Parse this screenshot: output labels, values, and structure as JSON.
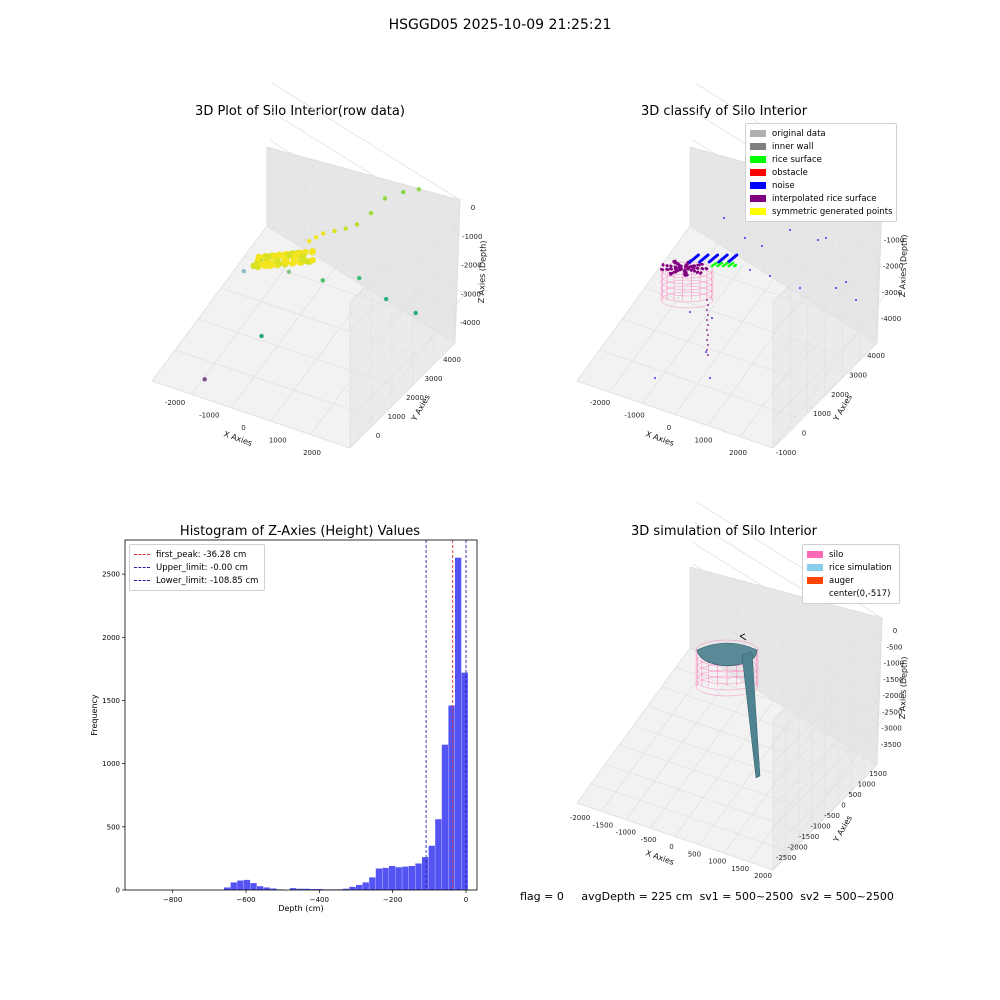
{
  "suptitle": "HSGGD05 2025-10-09 21:25:21",
  "footer": {
    "flag": "flag = 0",
    "avg_depth": "avgDepth = 225 cm",
    "sv1": "sv1 = 500~2500",
    "sv2": "sv2 = 500~2500"
  },
  "chart_data": [
    {
      "type": "scatter",
      "title": "3D Plot of Silo Interior(row data)",
      "xlabel": "X Axies",
      "ylabel": "Y Axies",
      "zlabel": "Z Axies (Depth)",
      "x_ticks": [
        "-2000",
        "-1000",
        "0",
        "1000",
        "2000"
      ],
      "y_ticks": [
        "0",
        "1000",
        "2000",
        "3000",
        "4000"
      ],
      "z_ticks": [
        "0",
        "-1000",
        "-2000",
        "-3000",
        "-4000"
      ],
      "points": [
        {
          "x": -200,
          "y": 2500,
          "z": -2000,
          "color": "#f5e61a"
        },
        {
          "x": -100,
          "y": 2600,
          "z": -1950,
          "color": "#f2e620"
        },
        {
          "x": 0,
          "y": 2700,
          "z": -1900,
          "color": "#e8e41b"
        },
        {
          "x": 200,
          "y": 2800,
          "z": -1850,
          "color": "#d9e21c"
        },
        {
          "x": 400,
          "y": 2900,
          "z": -1800,
          "color": "#c8e020"
        },
        {
          "x": 600,
          "y": 3000,
          "z": -1700,
          "color": "#b4dd2b"
        },
        {
          "x": 800,
          "y": 3200,
          "z": -1500,
          "color": "#a2db38"
        },
        {
          "x": 1000,
          "y": 3400,
          "z": -1200,
          "color": "#94d840"
        },
        {
          "x": 1300,
          "y": 3600,
          "z": -1100,
          "color": "#86d549"
        },
        {
          "x": 1600,
          "y": 3700,
          "z": -1000,
          "color": "#8fd744"
        },
        {
          "x": -900,
          "y": 1800,
          "z": -2100,
          "color": "#5ec962"
        },
        {
          "x": -1100,
          "y": 1500,
          "z": -2200,
          "color": "#8fb8c8"
        },
        {
          "x": 300,
          "y": 2200,
          "z": -2600,
          "color": "#4ac16d"
        },
        {
          "x": 900,
          "y": 2600,
          "z": -2700,
          "color": "#3dbc74"
        },
        {
          "x": 1400,
          "y": 2800,
          "z": -3300,
          "color": "#2db27d"
        },
        {
          "x": 1900,
          "y": 3100,
          "z": -3800,
          "color": "#27ad81"
        },
        {
          "x": -500,
          "y": 1200,
          "z": -3500,
          "color": "#21a685"
        },
        {
          "x": -1200,
          "y": 200,
          "z": -4000,
          "color": "#7e4e90"
        },
        {
          "x": -300,
          "y": 1900,
          "z": -2300,
          "color": "#7fc48a"
        }
      ]
    },
    {
      "type": "scatter",
      "title": "3D classify of Silo Interior",
      "xlabel": "X Axies",
      "ylabel": "Y Axies",
      "zlabel": "Z Axies (Depth)",
      "x_ticks": [
        "-2000",
        "-1000",
        "0",
        "1000",
        "2000"
      ],
      "y_ticks": [
        "-1000",
        "0",
        "1000",
        "2000",
        "3000",
        "4000"
      ],
      "z_ticks": [
        "0",
        "-1000",
        "-2000",
        "-3000",
        "-4000"
      ],
      "legend": [
        {
          "label": "original data",
          "color": "#b0b0b0"
        },
        {
          "label": "inner wall",
          "color": "#808080"
        },
        {
          "label": "rice surface",
          "color": "#00ff00"
        },
        {
          "label": "obstacle",
          "color": "#ff0000"
        },
        {
          "label": "noise",
          "color": "#0000ff"
        },
        {
          "label": "interpolated rice surface",
          "color": "#800080"
        },
        {
          "label": "symmetric generated points",
          "color": "#ffff00"
        }
      ]
    },
    {
      "type": "bar",
      "title": "Histogram of Z-Axies (Height) Values",
      "xlabel": "Depth (cm)",
      "ylabel": "Frequency",
      "xlim": [
        -930,
        30
      ],
      "ylim": [
        0,
        2770
      ],
      "x_ticks": [
        -800,
        -600,
        -400,
        -200,
        0
      ],
      "y_ticks": [
        0,
        500,
        1000,
        1500,
        2000,
        2500
      ],
      "bin_width": 18,
      "bins": [
        {
          "x": -660,
          "v": 20
        },
        {
          "x": -642,
          "v": 60
        },
        {
          "x": -624,
          "v": 75
        },
        {
          "x": -606,
          "v": 80
        },
        {
          "x": -588,
          "v": 55
        },
        {
          "x": -570,
          "v": 30
        },
        {
          "x": -552,
          "v": 20
        },
        {
          "x": -534,
          "v": 12
        },
        {
          "x": -516,
          "v": 5
        },
        {
          "x": -480,
          "v": 15
        },
        {
          "x": -462,
          "v": 10
        },
        {
          "x": -444,
          "v": 10
        },
        {
          "x": -426,
          "v": 8
        },
        {
          "x": -408,
          "v": 8
        },
        {
          "x": -390,
          "v": 5
        },
        {
          "x": -372,
          "v": 5
        },
        {
          "x": -354,
          "v": 5
        },
        {
          "x": -336,
          "v": 10
        },
        {
          "x": -318,
          "v": 25
        },
        {
          "x": -300,
          "v": 40
        },
        {
          "x": -282,
          "v": 60
        },
        {
          "x": -264,
          "v": 100
        },
        {
          "x": -246,
          "v": 170
        },
        {
          "x": -228,
          "v": 175
        },
        {
          "x": -210,
          "v": 190
        },
        {
          "x": -192,
          "v": 180
        },
        {
          "x": -174,
          "v": 185
        },
        {
          "x": -156,
          "v": 190
        },
        {
          "x": -138,
          "v": 210
        },
        {
          "x": -120,
          "v": 260
        },
        {
          "x": -102,
          "v": 350
        },
        {
          "x": -84,
          "v": 560
        },
        {
          "x": -66,
          "v": 1150
        },
        {
          "x": -48,
          "v": 1460
        },
        {
          "x": -30,
          "v": 2630
        },
        {
          "x": -12,
          "v": 1720
        }
      ],
      "reference_lines": [
        {
          "label": "first_peak: -36.28 cm",
          "value": -36.28,
          "color": "#e03030"
        },
        {
          "label": "Upper_limit: -0.00 cm",
          "value": 0.0,
          "color": "#2020a0"
        },
        {
          "label": "Lower_limit: -108.85 cm",
          "value": -108.85,
          "color": "#2020a0"
        }
      ]
    },
    {
      "type": "surface",
      "title": "3D simulation of Silo Interior",
      "xlabel": "X Axies",
      "ylabel": "Y Axies",
      "zlabel": "Z Axies (Depth)",
      "x_ticks": [
        "-2000",
        "-1500",
        "-1000",
        "-500",
        "0",
        "500",
        "1000",
        "1500",
        "2000"
      ],
      "y_ticks": [
        "-2500",
        "-2000",
        "-1500",
        "-1000",
        "-500",
        "0",
        "500",
        "1000",
        "1500"
      ],
      "z_ticks": [
        "0",
        "-500",
        "-1000",
        "-1500",
        "-2000",
        "-2500",
        "-3000",
        "-3500"
      ],
      "legend": [
        {
          "label": "silo",
          "color": "#ff69b4"
        },
        {
          "label": "rice simulation",
          "color": "#87ceeb"
        },
        {
          "label": "auger",
          "color": "#ff4500"
        },
        {
          "label": "center(0,-517)",
          "color": "#ffffff"
        }
      ]
    }
  ]
}
